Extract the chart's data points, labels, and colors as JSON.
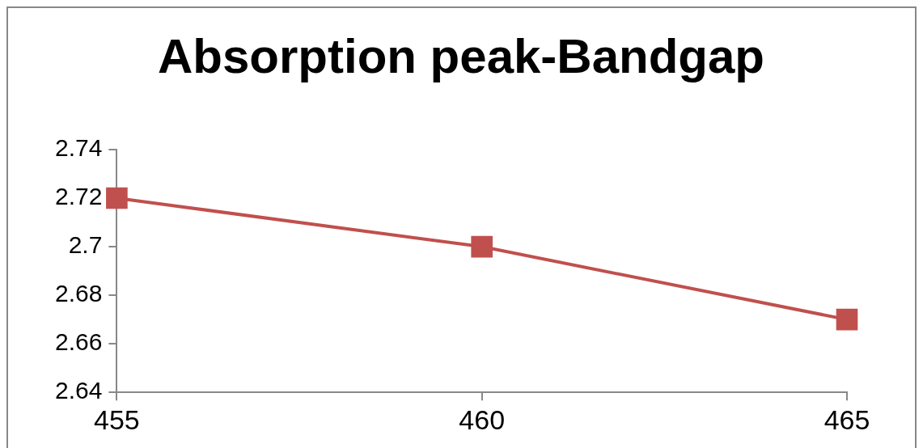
{
  "chart_data": {
    "type": "line",
    "title": "Absorption peak-Bandgap",
    "categories": [
      "455",
      "460",
      "465"
    ],
    "series": [
      {
        "color": "#c0504d",
        "values": [
          2.72,
          2.7,
          2.67
        ]
      }
    ],
    "ylim": [
      2.64,
      2.74
    ],
    "yticks": [
      2.64,
      2.66,
      2.68,
      2.7,
      2.72,
      2.74
    ],
    "grid": false,
    "legend": false,
    "marker": "square",
    "line_style": "solid"
  }
}
